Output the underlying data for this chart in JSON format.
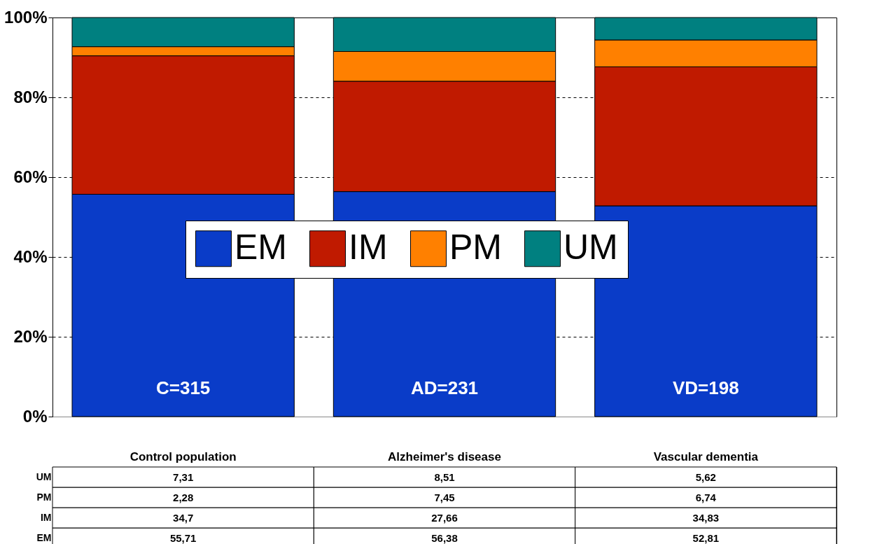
{
  "chart_data": {
    "type": "bar",
    "stacked": true,
    "categories": [
      "Control population",
      "Alzheimer's disease",
      "Vascular dementia"
    ],
    "series": [
      {
        "name": "EM",
        "color": "#0a3cc8",
        "values": [
          55.71,
          56.38,
          52.81
        ],
        "value_labels": [
          "55,71",
          "56,38",
          "52,81"
        ]
      },
      {
        "name": "IM",
        "color": "#c01a00",
        "values": [
          34.7,
          27.66,
          34.83
        ],
        "value_labels": [
          "34,7",
          "27,66",
          "34,83"
        ]
      },
      {
        "name": "PM",
        "color": "#ff8000",
        "values": [
          2.28,
          7.45,
          6.74
        ],
        "value_labels": [
          "2,28",
          "7,45",
          "6,74"
        ]
      },
      {
        "name": "UM",
        "color": "#008080",
        "values": [
          7.31,
          8.51,
          5.62
        ],
        "value_labels": [
          "7,31",
          "8,51",
          "5,62"
        ]
      }
    ],
    "ylim": [
      0,
      100
    ],
    "yticks": [
      {
        "value": 0,
        "label": "0%"
      },
      {
        "value": 20,
        "label": "20%"
      },
      {
        "value": 40,
        "label": "40%"
      },
      {
        "value": 60,
        "label": "60%"
      },
      {
        "value": 80,
        "label": "80%"
      },
      {
        "value": 100,
        "label": "100%"
      }
    ],
    "grid": "y",
    "legend": "center",
    "annotations": [
      "C=315",
      "AD=231",
      "VD=198"
    ]
  }
}
